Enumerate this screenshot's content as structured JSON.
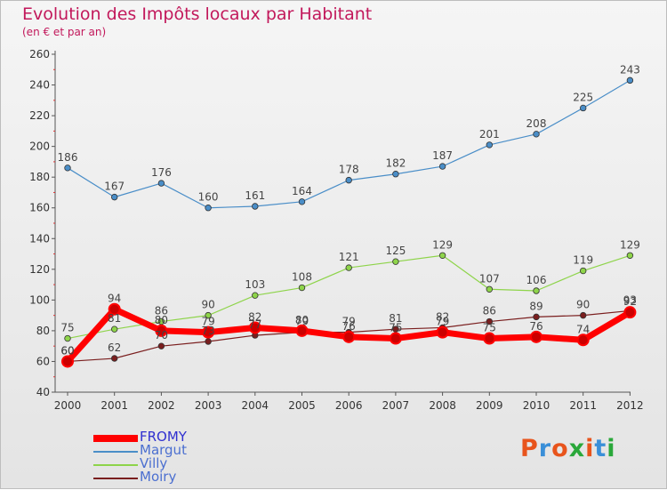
{
  "title": "Evolution des Impôts locaux par Habitant",
  "subtitle": "(en € et par an)",
  "logo_text": "Proxiti",
  "chart_data": {
    "type": "line",
    "x": [
      "2000",
      "2001",
      "2002",
      "2003",
      "2004",
      "2005",
      "2006",
      "2007",
      "2008",
      "2009",
      "2010",
      "2011",
      "2012"
    ],
    "ylim": [
      40,
      260
    ],
    "yticks": [
      40,
      60,
      80,
      100,
      120,
      140,
      160,
      180,
      200,
      220,
      240,
      260
    ],
    "grid": false,
    "legend_position": "bottom-left",
    "series": [
      {
        "name": "FROMY",
        "color": "#ff0000",
        "values": [
          60,
          94,
          80,
          79,
          82,
          80,
          76,
          75,
          79,
          75,
          76,
          74,
          92
        ]
      },
      {
        "name": "Margut",
        "color": "#4a8ec8",
        "values": [
          186,
          167,
          176,
          160,
          161,
          164,
          178,
          182,
          187,
          201,
          208,
          225,
          243
        ]
      },
      {
        "name": "Villy",
        "color": "#8ed44a",
        "values": [
          75,
          81,
          86,
          90,
          103,
          108,
          121,
          125,
          129,
          107,
          106,
          119,
          129
        ]
      },
      {
        "name": "Moiry",
        "color": "#7a1e1e",
        "values": [
          60,
          62,
          70,
          73,
          77,
          79,
          79,
          81,
          82,
          86,
          89,
          90,
          93
        ]
      }
    ]
  }
}
